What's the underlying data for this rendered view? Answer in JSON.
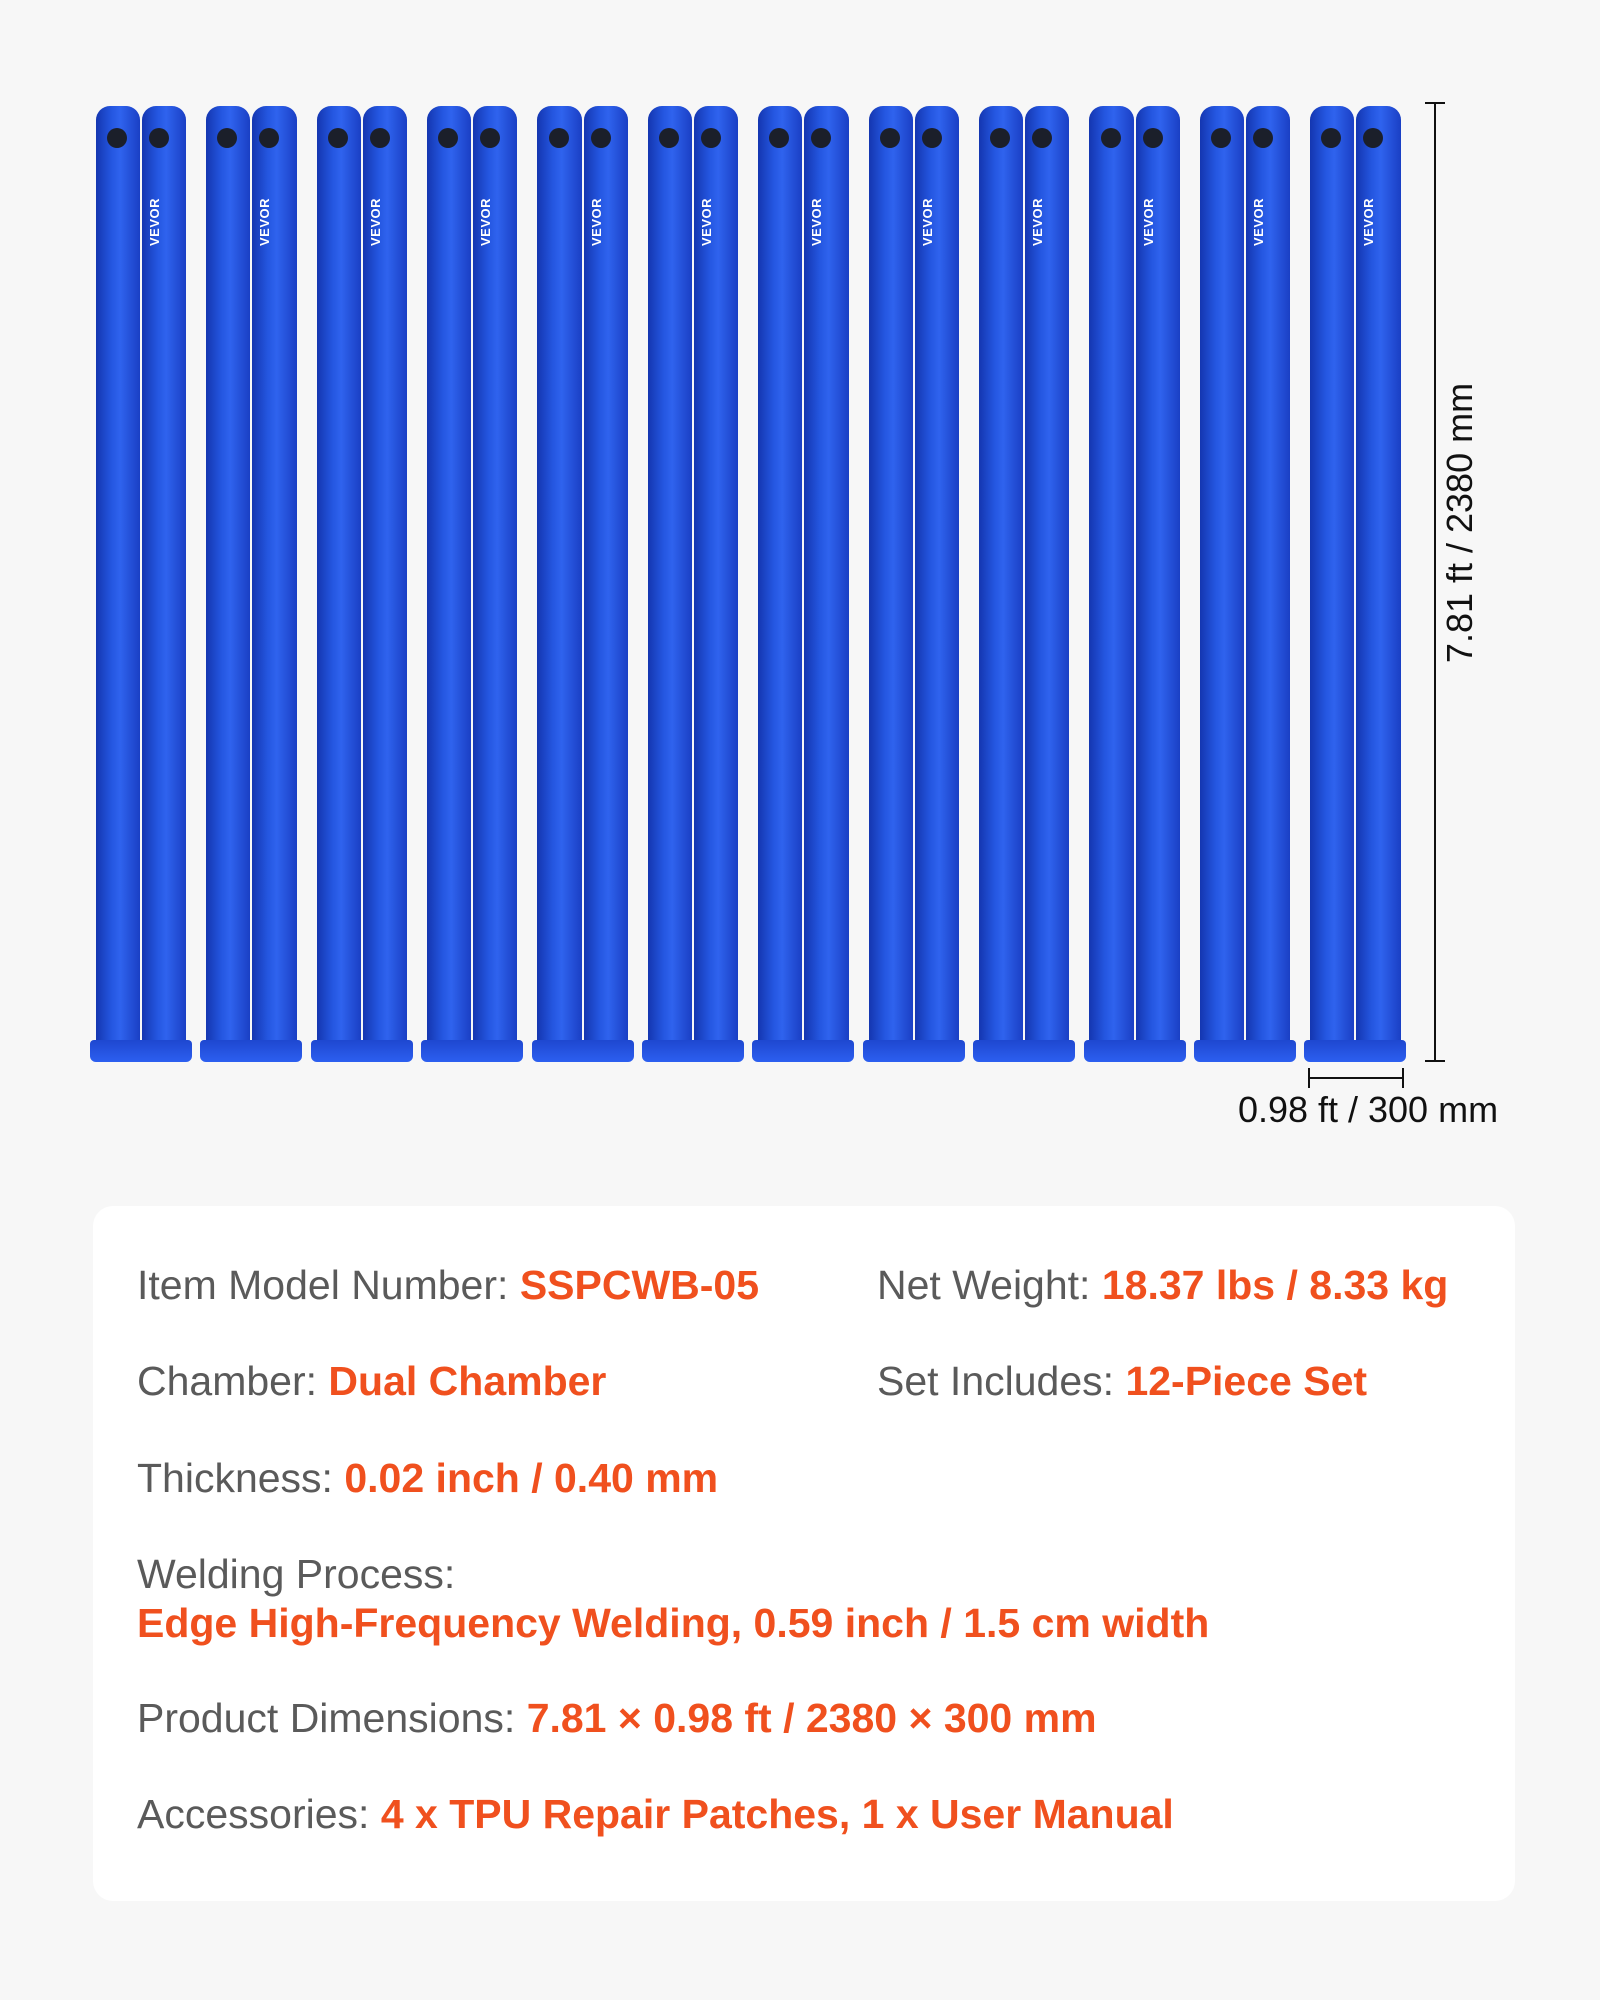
{
  "product": {
    "brand_logo": "VEVOR",
    "colors": {
      "tube": "#2456e0",
      "accent": "#f0501e",
      "label": "#5a5a5a"
    }
  },
  "dimensions": {
    "height_label": "7.81 ft / 2380 mm",
    "width_label": "0.98 ft / 300 mm"
  },
  "specs": {
    "model": {
      "label": "Item Model Number:",
      "value": "SSPCWB-05"
    },
    "weight": {
      "label": "Net Weight:",
      "value": "18.37 lbs / 8.33 kg"
    },
    "chamber": {
      "label": "Chamber:",
      "value": "Dual Chamber"
    },
    "set": {
      "label": "Set Includes:",
      "value": "12-Piece Set"
    },
    "thickness": {
      "label": "Thickness:",
      "value": "0.02 inch / 0.40 mm"
    },
    "welding": {
      "label": "Welding Process:",
      "value": "Edge High-Frequency Welding, 0.59 inch / 1.5 cm width"
    },
    "dims": {
      "label": "Product Dimensions:",
      "value": "7.81 × 0.98 ft / 2380 × 300 mm"
    },
    "accessories": {
      "label": "Accessories:",
      "value": "4 x TPU Repair Patches, 1 x User Manual"
    }
  }
}
